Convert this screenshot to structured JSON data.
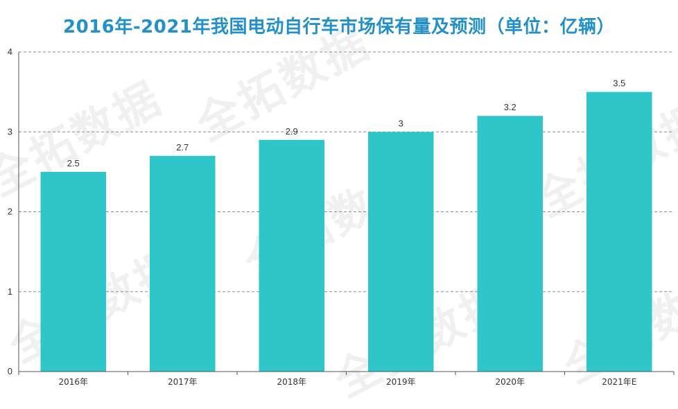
{
  "chart_data": {
    "type": "bar",
    "title": "2016年-2021年我国电动自行车市场保有量及预测（单位：亿辆）",
    "categories": [
      "2016年",
      "2017年",
      "2018年",
      "2019年",
      "2020年",
      "2021年E"
    ],
    "values": [
      2.5,
      2.7,
      2.9,
      3,
      3.2,
      3.5
    ],
    "data_labels": [
      "2.5",
      "2.7",
      "2.9",
      "3",
      "3.2",
      "3.5"
    ],
    "ylim": [
      0,
      4
    ],
    "yticks": [
      "0",
      "1",
      "2",
      "3",
      "4"
    ],
    "xlabel": "",
    "ylabel": "",
    "grid": true,
    "bar_color": "#2ec6c8",
    "title_color": "#2390c9"
  },
  "watermark": {
    "text": "全拓数据"
  }
}
